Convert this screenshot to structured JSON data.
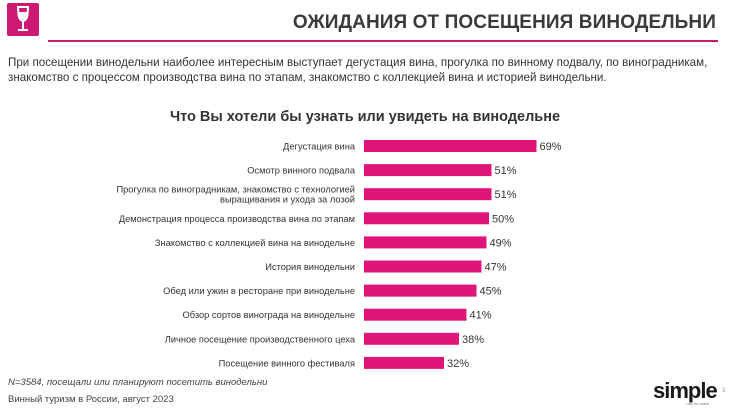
{
  "header": {
    "title": "ОЖИДАНИЯ ОТ ПОСЕЩЕНИЯ ВИНОДЕЛЬНИ",
    "logo_icon": "wine-glass-icon",
    "accent_color": "#cc1a73"
  },
  "intro": "При посещении винодельни наиболее интересным выступает дегустация вина, прогулка по винному подвалу, по виноградникам, знакомство с процессом производства вина по этапам, знакомство с коллекцией вина и историей винодельни.",
  "chart_data": {
    "type": "bar",
    "orientation": "horizontal",
    "title": "Что Вы хотели бы узнать или увидеть на винодельне",
    "bar_color": "#e0157a",
    "value_suffix": "%",
    "xlim": [
      0,
      100
    ],
    "grid": false,
    "categories": [
      [
        "Дегустация вина"
      ],
      [
        "Осмотр винного подвала"
      ],
      [
        "Прогулка по виноградникам, знакомство с технологией",
        "выращивания и ухода за лозой"
      ],
      [
        "Демонстрация процесса производства вина по этапам"
      ],
      [
        "Знакомство с коллекцией вина на винодельне"
      ],
      [
        "История винодельни"
      ],
      [
        "Обед или ужин в ресторане при винодельне"
      ],
      [
        "Обзор сортов винограда на винодельне"
      ],
      [
        "Личное посещение производственного цеха"
      ],
      [
        "Посещение винного фестиваля"
      ]
    ],
    "values": [
      69,
      51,
      51,
      50,
      49,
      47,
      45,
      41,
      38,
      32
    ]
  },
  "footer": {
    "footnote": "N=3584, посещали или планируют посетить винодельни",
    "source": "Винный туризм в России, август 2023",
    "brand": "simple",
    "brand_tagline": "...мы не пьём",
    "page_number": "3"
  }
}
